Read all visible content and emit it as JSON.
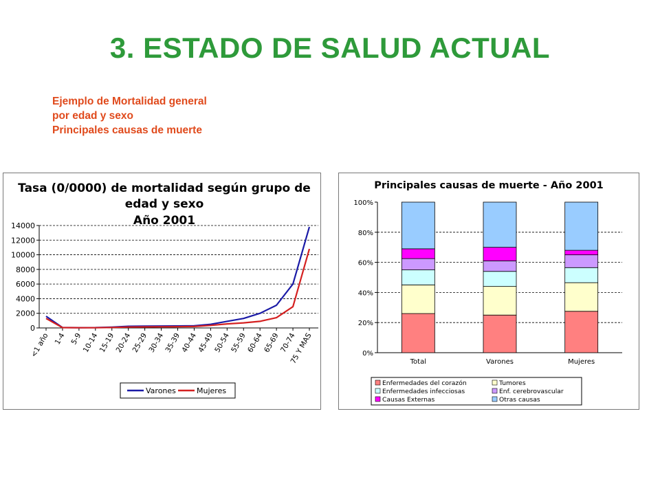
{
  "slide": {
    "title": "3. ESTADO DE SALUD ACTUAL",
    "subtitle_lines": [
      "Ejemplo de Mortalidad general",
      "por edad y sexo",
      "Principales causas de muerte"
    ]
  },
  "colors": {
    "title": "#2e9a3a",
    "subtitle": "#e04a1c"
  },
  "chart_data": [
    {
      "type": "line",
      "title": "Tasa (0/0000) de mortalidad según grupo de edad y sexo Año 2001",
      "title_lines": [
        "Tasa (0/0000) de mortalidad según grupo de",
        "edad y sexo",
        "Año 2001"
      ],
      "categories": [
        "<1 año",
        "1-4",
        "5-9",
        "10-14",
        "15-19",
        "20-24",
        "25-29",
        "30-34",
        "35-39",
        "40-44",
        "45-49",
        "50-54",
        "55-59",
        "60-64",
        "65-69",
        "70-74",
        "75 Y MAS"
      ],
      "series": [
        {
          "name": "Varones",
          "color": "#1a1aa6",
          "values": [
            1600,
            60,
            35,
            45,
            110,
            230,
            250,
            260,
            270,
            300,
            500,
            900,
            1300,
            2000,
            3100,
            6000,
            13800
          ]
        },
        {
          "name": "Mujeres",
          "color": "#d42020",
          "values": [
            1300,
            50,
            25,
            30,
            70,
            120,
            140,
            160,
            170,
            200,
            350,
            550,
            700,
            900,
            1400,
            2900,
            10800
          ]
        }
      ],
      "ylim": [
        0,
        14000
      ],
      "yticks": [
        "14000",
        "12000",
        "10000",
        "8000",
        "6000",
        "4000",
        "2000",
        "0"
      ],
      "ytick_values": [
        14000,
        12000,
        10000,
        8000,
        6000,
        4000,
        2000,
        0
      ],
      "xlabel": "",
      "ylabel": "",
      "grid": true,
      "legend": "bottom"
    },
    {
      "type": "bar",
      "stacked": "percent",
      "title": "Principales causas de muerte - Año 2001",
      "categories": [
        "Total",
        "Varones",
        "Mujeres"
      ],
      "series": [
        {
          "name": "Enfermedades del corazón",
          "color": "#ff8080",
          "values": [
            26,
            25,
            27.5
          ]
        },
        {
          "name": "Tumores",
          "color": "#ffffcc",
          "values": [
            19,
            19,
            19
          ]
        },
        {
          "name": "Enfermedades infecciosas",
          "color": "#ccffff",
          "values": [
            10,
            10,
            10
          ]
        },
        {
          "name": "Enf. cerebrovascular",
          "color": "#cc99ff",
          "values": [
            7.5,
            7,
            8.5
          ]
        },
        {
          "name": "Causas Externas",
          "color": "#ff00ff",
          "values": [
            6.5,
            9,
            3
          ]
        },
        {
          "name": "Otras causas",
          "color": "#99ccff",
          "values": [
            31,
            30,
            32
          ]
        }
      ],
      "ylim": [
        0,
        100
      ],
      "yticks": [
        "100%",
        "80%",
        "60%",
        "40%",
        "20%",
        "0%"
      ],
      "ytick_values": [
        100,
        80,
        60,
        40,
        20,
        0
      ],
      "xlabel": "",
      "ylabel": "",
      "grid": true,
      "legend": "bottom"
    }
  ]
}
